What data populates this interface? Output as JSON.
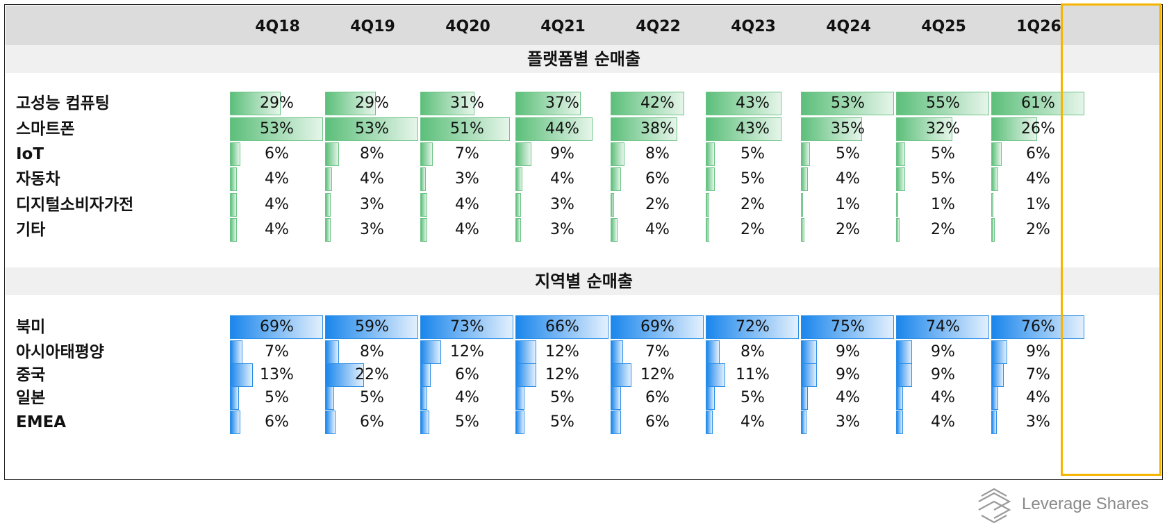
{
  "chart_data": {
    "type": "table",
    "columns": [
      "4Q18",
      "4Q19",
      "4Q20",
      "4Q21",
      "4Q22",
      "4Q23",
      "4Q24",
      "4Q25",
      "1Q26"
    ],
    "highlighted_column": "1Q26",
    "sections": [
      {
        "title": "플랫폼별 순매출",
        "color": "#5cbf7a",
        "rows": [
          {
            "label": "고성능 컴퓨팅",
            "values": [
              29,
              29,
              31,
              37,
              42,
              43,
              53,
              55,
              61
            ]
          },
          {
            "label": "스마트폰",
            "values": [
              53,
              53,
              51,
              44,
              38,
              43,
              35,
              32,
              26
            ]
          },
          {
            "label": "IoT",
            "values": [
              6,
              8,
              7,
              9,
              8,
              5,
              5,
              5,
              6
            ]
          },
          {
            "label": "자동차",
            "values": [
              4,
              4,
              3,
              4,
              6,
              5,
              4,
              5,
              4
            ]
          },
          {
            "label": "디지털소비자가전",
            "values": [
              4,
              3,
              4,
              3,
              2,
              2,
              1,
              1,
              1
            ]
          },
          {
            "label": "기타",
            "values": [
              4,
              3,
              4,
              3,
              4,
              2,
              2,
              2,
              2
            ]
          }
        ]
      },
      {
        "title": "지역별 순매출",
        "color": "#1a86ec",
        "rows": [
          {
            "label": "북미",
            "values": [
              69,
              59,
              73,
              66,
              69,
              72,
              75,
              74,
              76
            ]
          },
          {
            "label": "아시아태평양",
            "values": [
              7,
              8,
              12,
              12,
              7,
              8,
              9,
              9,
              9
            ]
          },
          {
            "label": "중국",
            "values": [
              13,
              22,
              6,
              12,
              12,
              11,
              9,
              9,
              7
            ]
          },
          {
            "label": "일본",
            "values": [
              5,
              5,
              4,
              5,
              6,
              5,
              4,
              4,
              4
            ]
          },
          {
            "label": "EMEA",
            "values": [
              6,
              6,
              5,
              5,
              6,
              4,
              3,
              4,
              3
            ]
          }
        ]
      }
    ],
    "value_suffix": "%"
  },
  "branding": {
    "logo_icon": "leverage-shares-logo-icon",
    "logo_text": "Leverage Shares"
  },
  "colors": {
    "highlight": "#f5b400",
    "header_band": "#dcdcdc",
    "section_band": "#f0f0f0"
  }
}
